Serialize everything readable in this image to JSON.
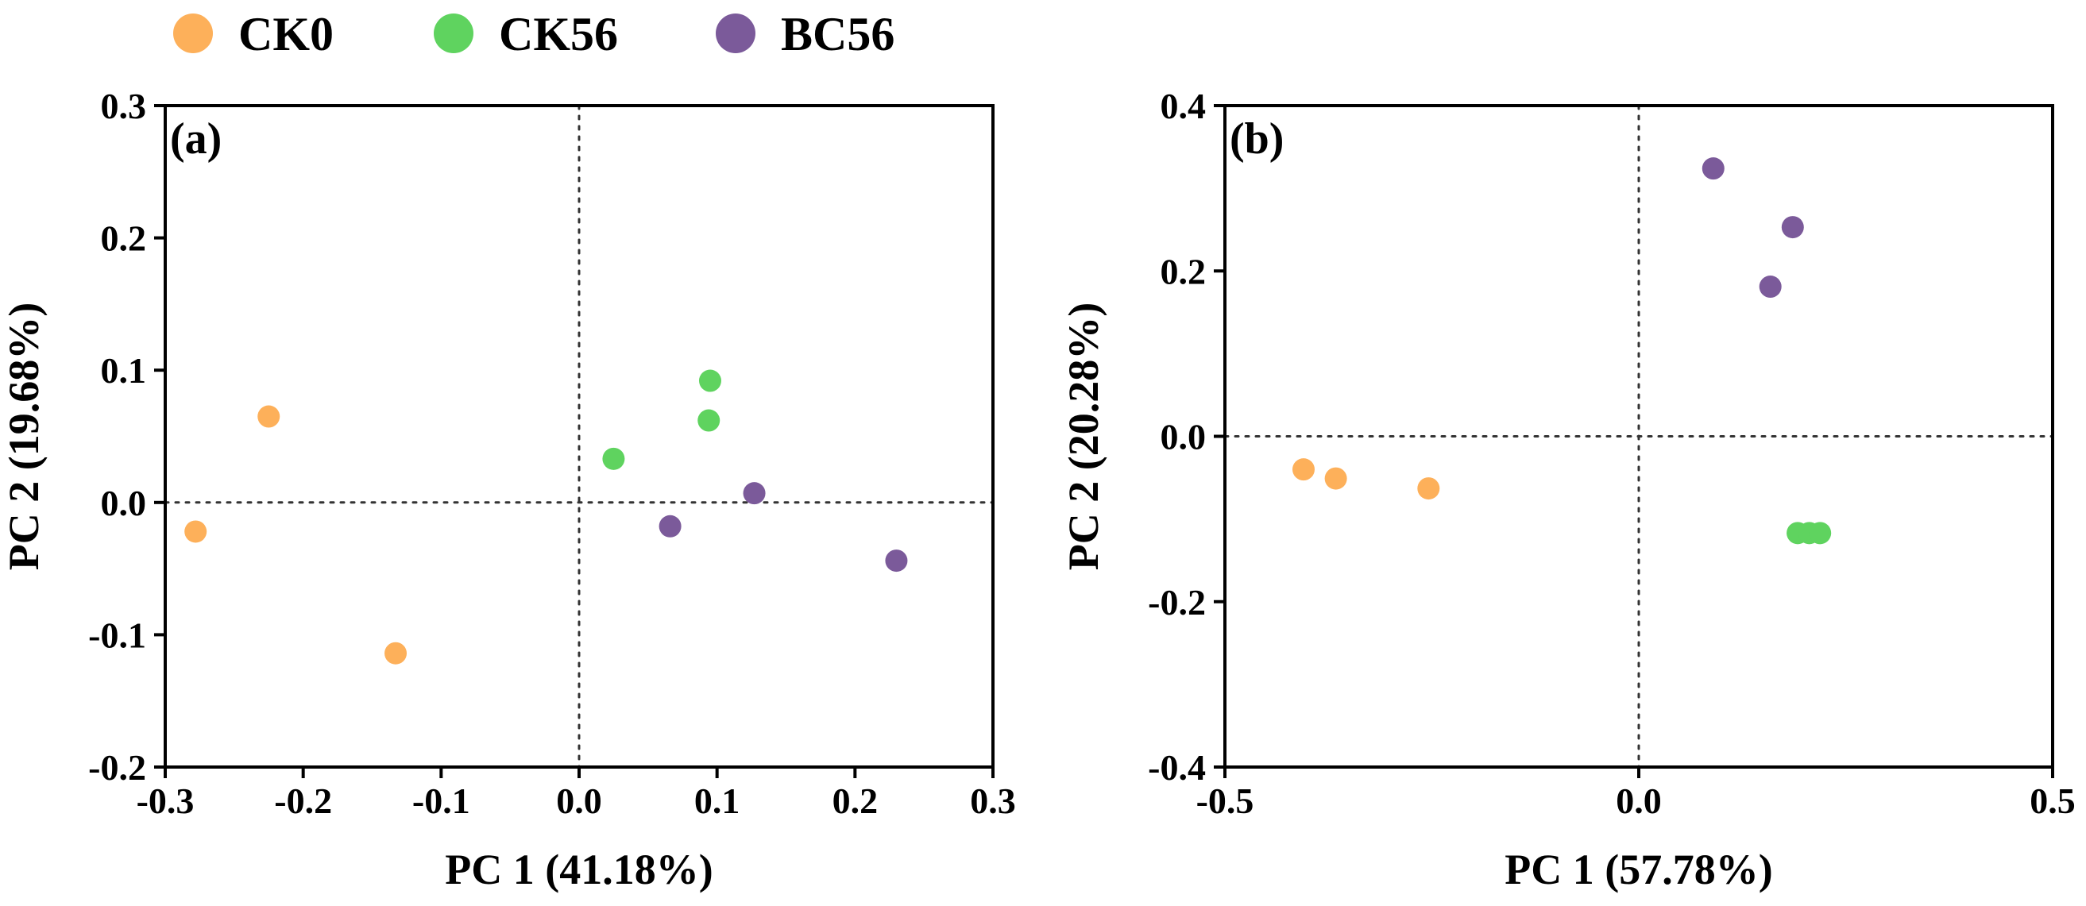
{
  "legend": [
    {
      "name": "CK0",
      "color": "#FDB05A"
    },
    {
      "name": "CK56",
      "color": "#5FD35F"
    },
    {
      "name": "BC56",
      "color": "#7B5A9A"
    }
  ],
  "chart_data": [
    {
      "type": "scatter",
      "panel_label": "(a)",
      "xlabel": "PC 1 (41.18%)",
      "ylabel": "PC 2 (19.68%)",
      "xlim": [
        -0.3,
        0.3
      ],
      "ylim": [
        -0.2,
        0.3
      ],
      "xticks": [
        "-0.3",
        "-0.2",
        "-0.1",
        "0.0",
        "0.1",
        "0.2",
        "0.3"
      ],
      "yticks": [
        "-0.2",
        "-0.1",
        "0.0",
        "0.1",
        "0.2",
        "0.3"
      ],
      "reference_lines": {
        "x": 0,
        "y": 0
      },
      "series": [
        {
          "name": "CK0",
          "color": "#FDB05A",
          "points": [
            [
              -0.225,
              0.065
            ],
            [
              -0.278,
              -0.022
            ],
            [
              -0.133,
              -0.114
            ]
          ]
        },
        {
          "name": "CK56",
          "color": "#5FD35F",
          "points": [
            [
              0.025,
              0.033
            ],
            [
              0.095,
              0.092
            ],
            [
              0.094,
              0.062
            ]
          ]
        },
        {
          "name": "BC56",
          "color": "#7B5A9A",
          "points": [
            [
              0.066,
              -0.018
            ],
            [
              0.127,
              0.007
            ],
            [
              0.23,
              -0.044
            ]
          ]
        }
      ]
    },
    {
      "type": "scatter",
      "panel_label": "(b)",
      "xlabel": "PC 1 (57.78%)",
      "ylabel": "PC 2 (20.28%)",
      "xlim": [
        -0.5,
        0.5
      ],
      "ylim": [
        -0.4,
        0.4
      ],
      "xticks": [
        "-0.5",
        "0.0",
        "0.5"
      ],
      "yticks": [
        "-0.4",
        "-0.2",
        "0.0",
        "0.2",
        "0.4"
      ],
      "reference_lines": {
        "x": 0,
        "y": 0
      },
      "series": [
        {
          "name": "CK0",
          "color": "#FDB05A",
          "points": [
            [
              -0.405,
              -0.04
            ],
            [
              -0.366,
              -0.051
            ],
            [
              -0.254,
              -0.063
            ]
          ]
        },
        {
          "name": "CK56",
          "color": "#5FD35F",
          "points": [
            [
              0.192,
              -0.117
            ],
            [
              0.206,
              -0.117
            ],
            [
              0.219,
              -0.117
            ]
          ]
        },
        {
          "name": "BC56",
          "color": "#7B5A9A",
          "points": [
            [
              0.09,
              0.324
            ],
            [
              0.186,
              0.253
            ],
            [
              0.159,
              0.181
            ]
          ]
        }
      ]
    }
  ]
}
